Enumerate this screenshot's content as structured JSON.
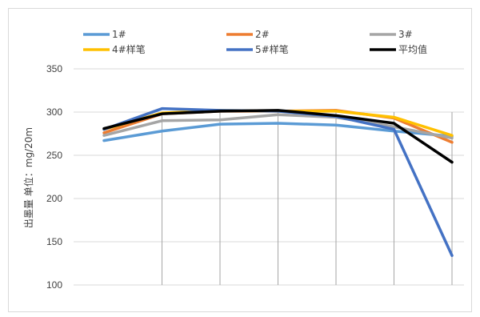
{
  "chart_data": {
    "type": "line",
    "title": "",
    "xlabel": "",
    "ylabel": "出墨量 单位：mg/20m",
    "ylim": [
      100,
      350
    ],
    "yticks": [
      100,
      150,
      200,
      250,
      300,
      350
    ],
    "x": [
      1,
      2,
      3,
      4,
      5,
      6,
      7
    ],
    "grid": "vertical",
    "legend_position": "top",
    "series": [
      {
        "name": "1#",
        "color": "#5b9bd5",
        "values": [
          267,
          278,
          286,
          287,
          285,
          278,
          272
        ]
      },
      {
        "name": "2#",
        "color": "#ed7d31",
        "values": [
          276,
          298,
          301,
          301,
          302,
          293,
          265
        ]
      },
      {
        "name": "3#",
        "color": "#a5a5a5",
        "values": [
          273,
          290,
          291,
          297,
          294,
          283,
          270
        ]
      },
      {
        "name": "4#样笔",
        "color": "#ffc000",
        "values": [
          280,
          299,
          302,
          301,
          301,
          294,
          273
        ]
      },
      {
        "name": "5#样笔",
        "color": "#4472c4",
        "values": [
          280,
          304,
          302,
          301,
          295,
          280,
          134
        ]
      },
      {
        "name": "平均值",
        "color": "#000000",
        "values": [
          281,
          298,
          301,
          302,
          296,
          287,
          242
        ]
      }
    ]
  }
}
